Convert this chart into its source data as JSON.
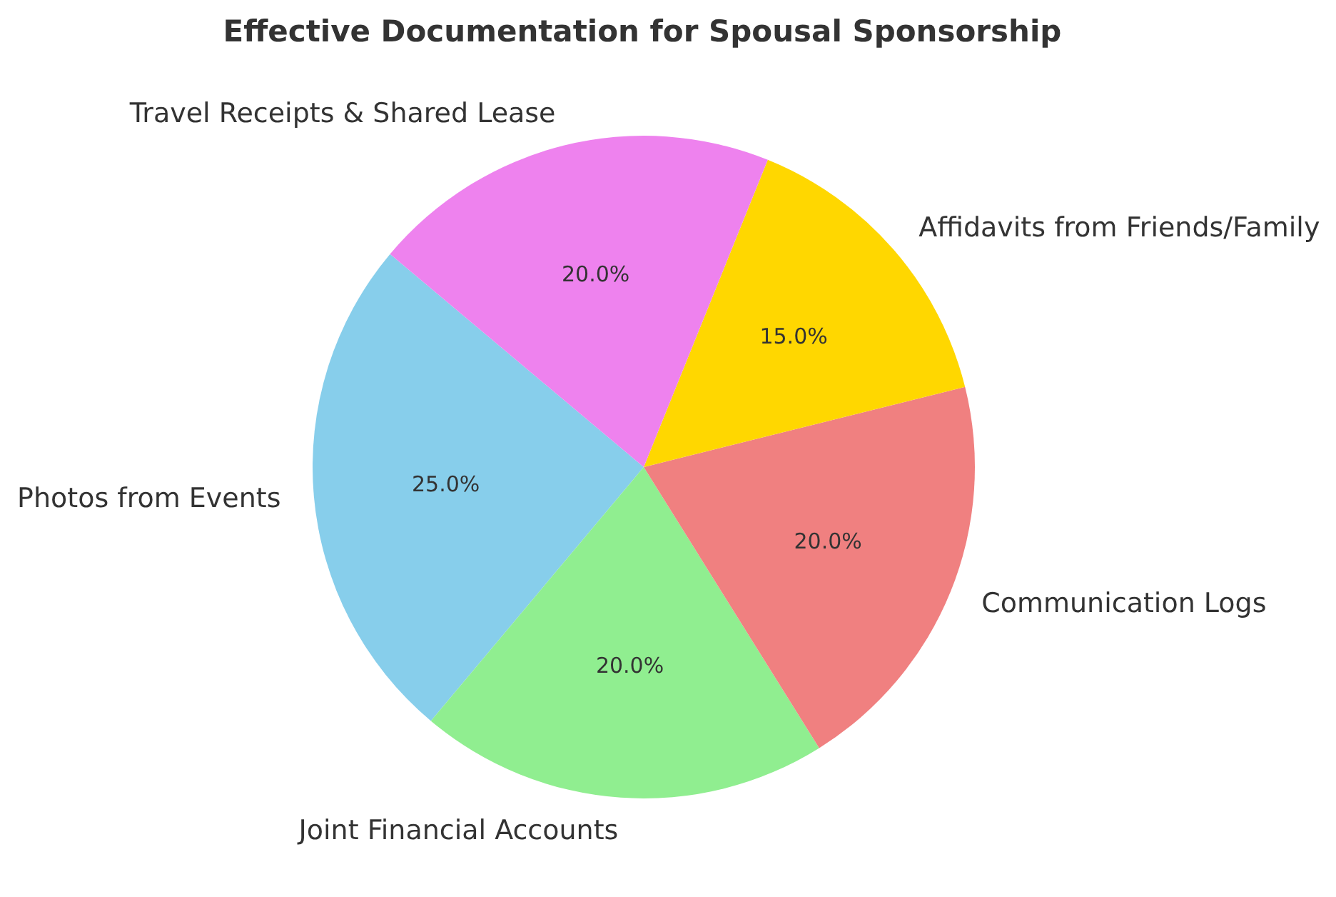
{
  "chart_data": {
    "type": "pie",
    "title": "Effective Documentation for Spousal Sponsorship",
    "categories": [
      "Photos from Events",
      "Joint Financial Accounts",
      "Communication Logs",
      "Affidavits from Friends/Family",
      "Travel Receipts & Shared Lease"
    ],
    "values": [
      25,
      20,
      20,
      15,
      20
    ],
    "colors": [
      "#87ceeb",
      "#90ee90",
      "#f08080",
      "#ffd700",
      "#ee82ee"
    ],
    "value_labels": [
      "25.0%",
      "20.0%",
      "20.0%",
      "15.0%",
      "20.0%"
    ]
  }
}
